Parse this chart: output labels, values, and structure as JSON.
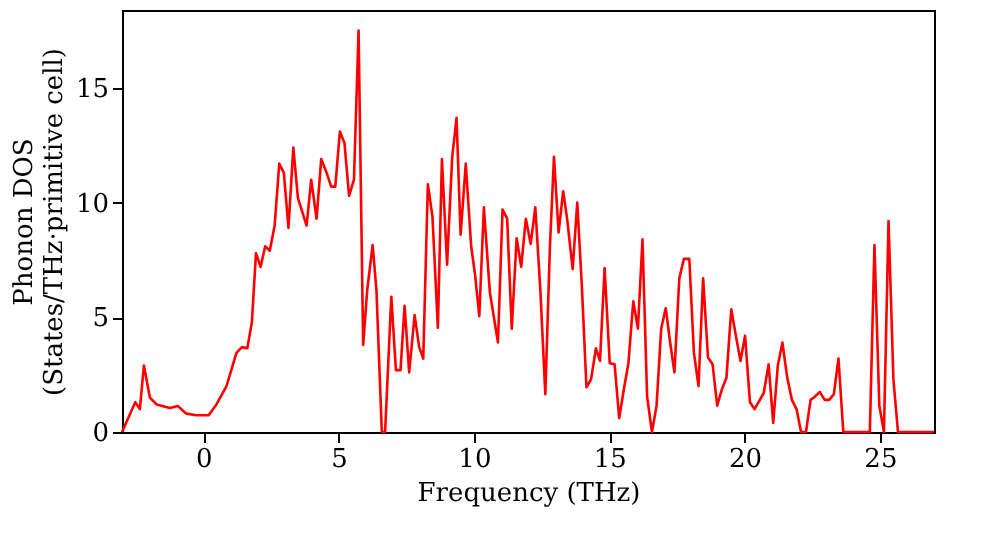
{
  "chart_data": {
    "type": "line",
    "xlabel": "Frequency (THz)",
    "ylabel": "Phonon DOS\n(States/THz·primitive cell)",
    "xlim": [
      -3,
      27
    ],
    "ylim": [
      0,
      18.4
    ],
    "xticks": [
      0,
      5,
      10,
      15,
      20,
      25
    ],
    "yticks": [
      0,
      5,
      10,
      15
    ],
    "grid": false,
    "marker": "none",
    "line_style": "solid",
    "series": [
      {
        "color": "#ff0000",
        "x": [
          -3.0,
          -2.51,
          -2.34,
          -2.19,
          -1.97,
          -1.72,
          -1.23,
          -0.94,
          -0.62,
          -0.25,
          0.2,
          0.49,
          0.86,
          1.23,
          1.43,
          1.63,
          1.8,
          1.95,
          2.12,
          2.29,
          2.46,
          2.64,
          2.81,
          2.98,
          3.15,
          3.33,
          3.5,
          3.82,
          3.99,
          4.19,
          4.36,
          4.56,
          4.73,
          4.88,
          5.05,
          5.22,
          5.39,
          5.57,
          5.74,
          5.91,
          6.06,
          6.26,
          6.4,
          6.6,
          6.72,
          6.95,
          7.12,
          7.29,
          7.44,
          7.61,
          7.81,
          7.98,
          8.13,
          8.3,
          8.47,
          8.67,
          8.82,
          9.01,
          9.2,
          9.36,
          9.51,
          9.7,
          9.9,
          10.05,
          10.2,
          10.37,
          10.59,
          10.89,
          11.06,
          11.23,
          11.4,
          11.58,
          11.75,
          11.92,
          12.1,
          12.27,
          12.46,
          12.64,
          12.81,
          12.96,
          13.13,
          13.3,
          13.45,
          13.65,
          13.82,
          13.99,
          14.16,
          14.33,
          14.51,
          14.66,
          14.83,
          15.02,
          15.2,
          15.37,
          15.54,
          15.71,
          15.89,
          16.06,
          16.23,
          16.4,
          16.58,
          16.75,
          16.92,
          17.09,
          17.24,
          17.41,
          17.59,
          17.76,
          17.96,
          18.13,
          18.3,
          18.47,
          18.65,
          18.82,
          18.99,
          19.16,
          19.33,
          19.51,
          19.68,
          19.85,
          20.02,
          20.2,
          20.37,
          20.54,
          20.71,
          20.89,
          21.06,
          21.23,
          21.4,
          21.58,
          21.75,
          21.92,
          22.09,
          22.27,
          22.44,
          22.61,
          22.78,
          22.96,
          23.13,
          23.3,
          23.47,
          23.65,
          24.63,
          24.8,
          24.98,
          25.15,
          25.32,
          25.5,
          25.67,
          27.0
        ],
        "values": [
          0,
          1.3,
          1.0,
          2.9,
          1.5,
          1.2,
          1.05,
          1.13,
          0.8,
          0.73,
          0.73,
          1.2,
          2.0,
          3.45,
          3.7,
          3.65,
          4.8,
          7.8,
          7.2,
          8.1,
          7.9,
          9.0,
          11.7,
          11.3,
          8.9,
          12.4,
          10.2,
          9.0,
          11.0,
          9.3,
          11.9,
          11.3,
          10.7,
          10.7,
          13.1,
          12.6,
          10.3,
          11.0,
          17.5,
          3.8,
          6.2,
          8.15,
          6.2,
          0,
          0,
          5.9,
          2.7,
          2.7,
          5.5,
          2.6,
          5.1,
          3.7,
          3.2,
          10.8,
          9.4,
          4.55,
          11.9,
          7.3,
          12.0,
          13.7,
          8.6,
          11.7,
          8.1,
          6.8,
          5.05,
          9.8,
          6.1,
          3.9,
          9.7,
          9.3,
          4.5,
          8.45,
          7.2,
          9.3,
          8.2,
          9.8,
          6.1,
          1.65,
          8.1,
          12.0,
          8.7,
          10.5,
          9.25,
          7.1,
          10.0,
          6.35,
          1.95,
          2.3,
          3.65,
          3.1,
          7.15,
          3.0,
          2.95,
          0.6,
          1.85,
          3.0,
          5.7,
          4.5,
          8.4,
          1.55,
          0,
          1.15,
          4.5,
          5.4,
          4.0,
          2.6,
          6.7,
          7.55,
          7.55,
          3.45,
          2.0,
          6.7,
          3.25,
          2.95,
          1.15,
          1.85,
          2.35,
          5.35,
          4.2,
          3.1,
          4.2,
          1.3,
          1.0,
          1.35,
          1.7,
          2.95,
          0.4,
          2.9,
          3.9,
          2.35,
          1.4,
          1.0,
          0,
          0,
          1.4,
          1.55,
          1.75,
          1.4,
          1.4,
          1.65,
          3.2,
          0,
          0,
          8.15,
          1.15,
          0,
          9.2,
          2.3,
          0,
          0
        ]
      }
    ]
  }
}
